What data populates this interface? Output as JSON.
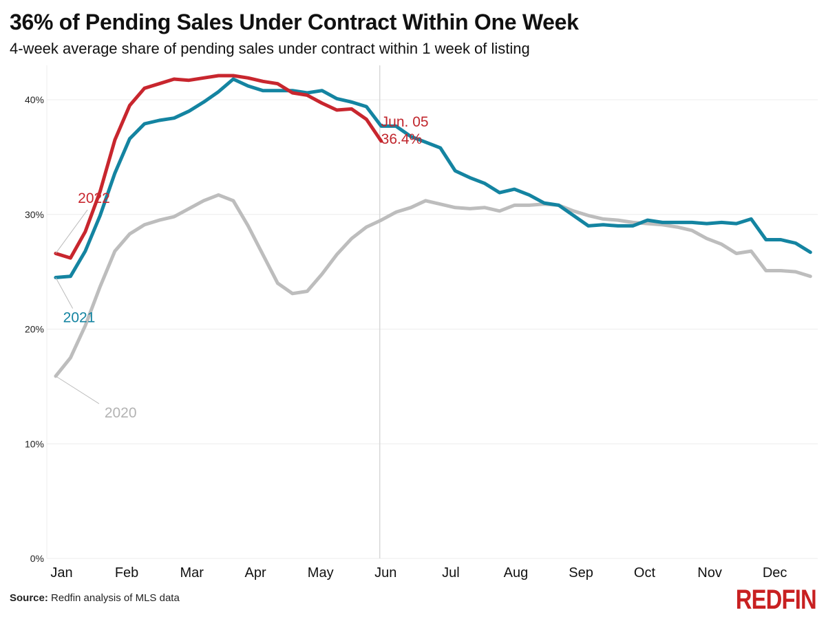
{
  "title": "36% of Pending Sales Under Contract Within One Week",
  "subtitle": "4-week average share of pending sales under contract within 1 week of listing",
  "source_label": "Source:",
  "source_text": "Redfin analysis of MLS data",
  "logo_text": "REDFIN",
  "colors": {
    "2022": "#c8262e",
    "2021": "#1484a1",
    "2020": "#bdbdbd",
    "grid": "#ececec",
    "marker": "#d8d8d8"
  },
  "chart_data": {
    "type": "line",
    "title": "36% of Pending Sales Under Contract Within One Week",
    "subtitle": "4-week average share of pending sales under contract within 1 week of listing",
    "xlabel": "",
    "ylabel": "",
    "x_unit": "week of year",
    "xlim": [
      0.4,
      52.5
    ],
    "ylim": [
      0,
      43
    ],
    "grid": true,
    "y_ticks": [
      0,
      10,
      20,
      30,
      40
    ],
    "y_tick_labels": [
      "0%",
      "10%",
      "20%",
      "30%",
      "40%"
    ],
    "x_tick_labels": [
      "Jan",
      "Feb",
      "Mar",
      "Apr",
      "May",
      "Jun",
      "Jul",
      "Aug",
      "Sep",
      "Oct",
      "Nov",
      "Dec"
    ],
    "x_tick_positions": [
      1.4,
      5.8,
      10.2,
      14.5,
      18.9,
      23.3,
      27.7,
      32.1,
      36.5,
      40.8,
      45.2,
      49.6
    ],
    "annotation": {
      "date": "Jun. 05",
      "value_label": "36.4%",
      "week": 22.9
    },
    "series": [
      {
        "name": "2022",
        "label_week": 2.5,
        "label_value": 31.0,
        "x": [
          1,
          2,
          3,
          4,
          5,
          6,
          7,
          8,
          9,
          10,
          11,
          12,
          13,
          14,
          15,
          16,
          17,
          18,
          19,
          20,
          21,
          22,
          23
        ],
        "values": [
          26.6,
          26.2,
          28.5,
          32.0,
          36.5,
          39.5,
          41.0,
          41.4,
          41.8,
          41.7,
          41.9,
          42.1,
          42.1,
          41.9,
          41.6,
          41.4,
          40.6,
          40.4,
          39.7,
          39.1,
          39.2,
          38.3,
          36.4
        ]
      },
      {
        "name": "2021",
        "label_week": 1.5,
        "label_value": 20.6,
        "x": [
          1,
          2,
          3,
          4,
          5,
          6,
          7,
          8,
          9,
          10,
          11,
          12,
          13,
          14,
          15,
          16,
          17,
          18,
          19,
          20,
          21,
          22,
          23,
          24,
          25,
          26,
          27,
          28,
          29,
          30,
          31,
          32,
          33,
          34,
          35,
          36,
          37,
          38,
          39,
          40,
          41,
          42,
          43,
          44,
          45,
          46,
          47,
          48,
          49,
          50,
          51,
          52
        ],
        "values": [
          24.5,
          24.6,
          26.8,
          29.9,
          33.6,
          36.6,
          37.9,
          38.2,
          38.4,
          39.0,
          39.8,
          40.7,
          41.8,
          41.2,
          40.8,
          40.8,
          40.8,
          40.6,
          40.8,
          40.1,
          39.8,
          39.4,
          37.7,
          37.7,
          36.8,
          36.3,
          35.8,
          33.8,
          33.2,
          32.7,
          31.9,
          32.2,
          31.7,
          31.0,
          30.8,
          29.9,
          29.0,
          29.1,
          29.0,
          29.0,
          29.5,
          29.3,
          29.3,
          29.3,
          29.2,
          29.3,
          29.2,
          29.6,
          27.8,
          27.8,
          27.5,
          26.7
        ]
      },
      {
        "name": "2020",
        "label_week": 4.3,
        "label_value": 12.3,
        "x": [
          1,
          2,
          3,
          4,
          5,
          6,
          7,
          8,
          9,
          10,
          11,
          12,
          13,
          14,
          15,
          16,
          17,
          18,
          19,
          20,
          21,
          22,
          23,
          24,
          25,
          26,
          27,
          28,
          29,
          30,
          31,
          32,
          33,
          34,
          35,
          36,
          37,
          38,
          39,
          40,
          41,
          42,
          43,
          44,
          45,
          46,
          47,
          48,
          49,
          50,
          51,
          52
        ],
        "values": [
          15.9,
          17.5,
          20.3,
          23.7,
          26.8,
          28.3,
          29.1,
          29.5,
          29.8,
          30.5,
          31.2,
          31.7,
          31.2,
          29.0,
          26.5,
          24.0,
          23.1,
          23.3,
          24.8,
          26.5,
          27.9,
          28.9,
          29.5,
          30.2,
          30.6,
          31.2,
          30.9,
          30.6,
          30.5,
          30.6,
          30.3,
          30.8,
          30.8,
          30.9,
          30.8,
          30.3,
          29.9,
          29.6,
          29.5,
          29.3,
          29.2,
          29.1,
          28.9,
          28.6,
          27.9,
          27.4,
          26.6,
          26.8,
          25.1,
          25.1,
          25.0,
          24.6
        ]
      }
    ]
  }
}
